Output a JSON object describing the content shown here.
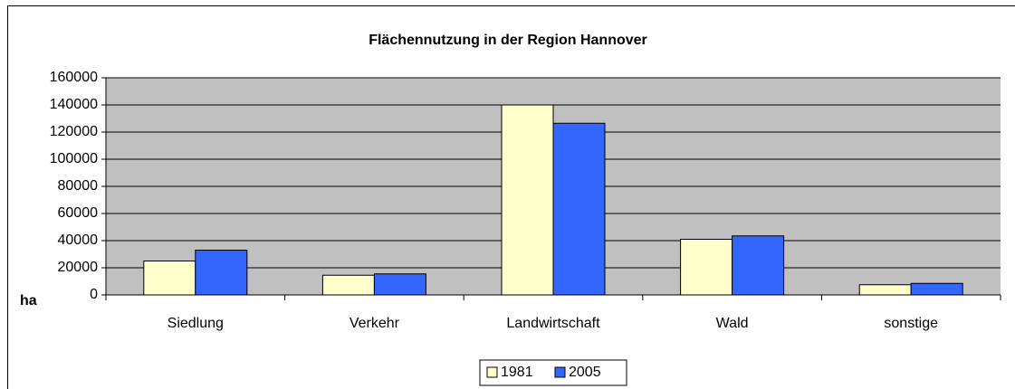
{
  "chart_data": {
    "type": "bar",
    "title": "Flächennutzung in der Region Hannover",
    "y_label": "ha",
    "categories": [
      "Siedlung",
      "Verkehr",
      "Landwirtschaft",
      "Wald",
      "sonstige"
    ],
    "series": [
      {
        "name": "1981",
        "color": "#ffffcc",
        "values": [
          25000,
          14500,
          140000,
          41000,
          7500
        ]
      },
      {
        "name": "2005",
        "color": "#3366ff",
        "values": [
          33000,
          15500,
          126500,
          43500,
          8500
        ]
      }
    ],
    "ylim": [
      0,
      160000
    ],
    "yticks": [
      0,
      20000,
      40000,
      60000,
      80000,
      100000,
      120000,
      140000,
      160000
    ],
    "grid": true,
    "legend": "bottom"
  }
}
